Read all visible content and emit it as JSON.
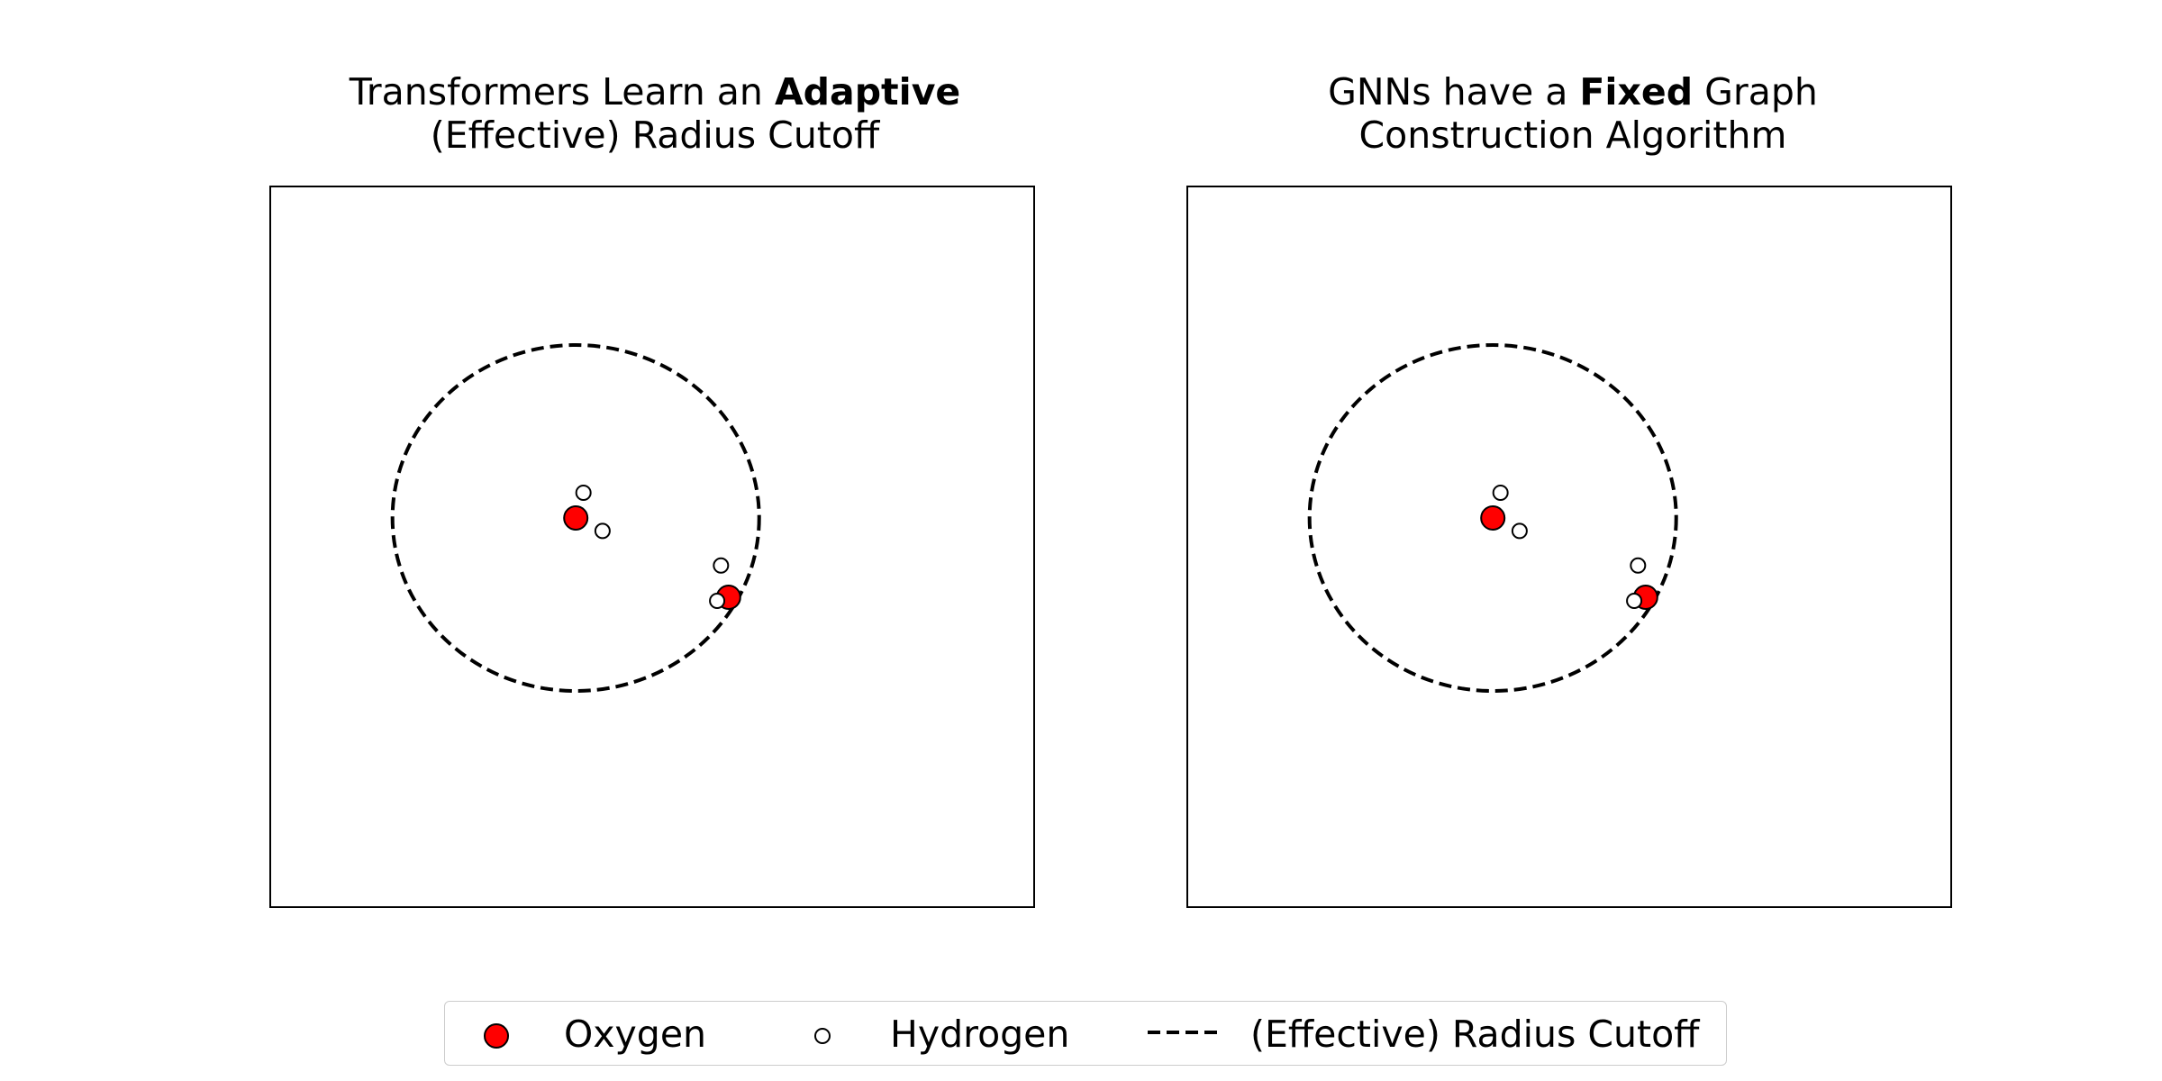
{
  "chart_data": [
    {
      "type": "scatter",
      "title_parts": [
        "Transformers Learn an ",
        "Adaptive",
        "(Effective) Radius Cutoff"
      ],
      "xlabel": "",
      "ylabel": "",
      "grid": false,
      "ticks": false,
      "series": [
        {
          "name": "Oxygen",
          "color": "#ff0000",
          "points": [
            [
              0.4,
              0.54
            ],
            [
              0.6,
              0.43
            ]
          ]
        },
        {
          "name": "Hydrogen",
          "color": "#ffffff",
          "points": [
            [
              0.41,
              0.575
            ],
            [
              0.435,
              0.522
            ],
            [
              0.59,
              0.474
            ],
            [
              0.585,
              0.425
            ]
          ]
        }
      ],
      "cutoff_circle": {
        "label": "(Effective) Radius Cutoff",
        "center": [
          0.4,
          0.54
        ],
        "radius": 0.24,
        "style": "dashed"
      }
    },
    {
      "type": "scatter",
      "title_parts": [
        "GNNs have a ",
        "Fixed",
        " Graph",
        "Construction Algorithm"
      ],
      "xlabel": "",
      "ylabel": "",
      "grid": false,
      "ticks": false,
      "series": [
        {
          "name": "Oxygen",
          "color": "#ff0000",
          "points": [
            [
              0.4,
              0.54
            ],
            [
              0.6,
              0.43
            ]
          ]
        },
        {
          "name": "Hydrogen",
          "color": "#ffffff",
          "points": [
            [
              0.41,
              0.575
            ],
            [
              0.435,
              0.522
            ],
            [
              0.59,
              0.474
            ],
            [
              0.585,
              0.425
            ]
          ]
        }
      ],
      "cutoff_circle": {
        "label": "(Effective) Radius Cutoff",
        "center": [
          0.4,
          0.54
        ],
        "radius": 0.24,
        "style": "dashed"
      }
    }
  ],
  "legend": {
    "placement": "bottom-center",
    "items": [
      {
        "label": "Oxygen",
        "icon": "red-circle-marker"
      },
      {
        "label": "Hydrogen",
        "icon": "white-circle-marker"
      },
      {
        "label": "(Effective) Radius Cutoff",
        "icon": "dashed-line"
      }
    ]
  }
}
